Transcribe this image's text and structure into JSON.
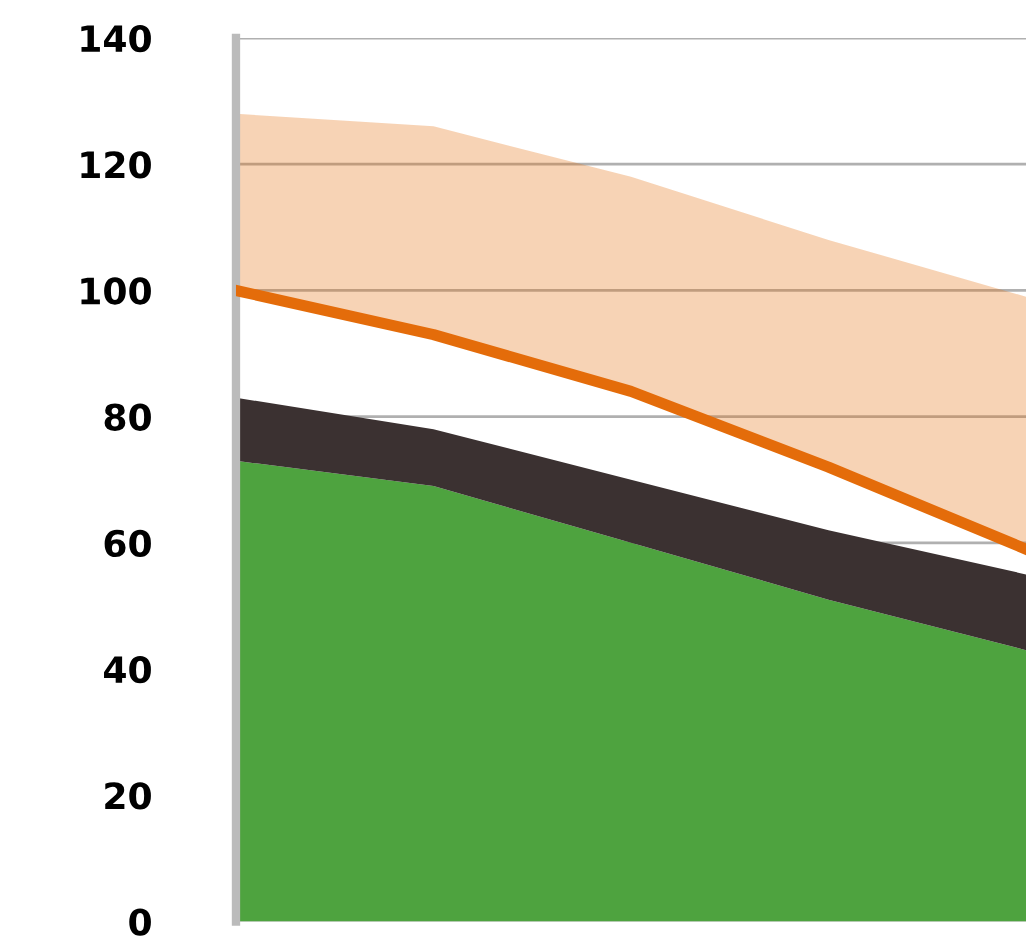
{
  "chart_data": {
    "type": "area",
    "stacked": true,
    "categories": [
      null,
      null,
      null,
      null,
      null
    ],
    "series": [
      {
        "color": "#4ea33f",
        "values": [
          73,
          69,
          60,
          51,
          43
        ]
      },
      {
        "color": "#3b3131",
        "values": [
          10,
          9,
          10,
          11,
          12
        ]
      },
      {
        "type": "line",
        "color": "#e46c0a",
        "values": [
          100,
          93,
          84,
          72,
          59
        ],
        "lower": [
          100,
          93,
          84,
          72,
          59
        ],
        "upper": [
          128,
          126,
          118,
          108,
          99
        ]
      }
    ],
    "ylim": [
      0,
      140
    ],
    "yticks": [
      0,
      20,
      40,
      60,
      80,
      100,
      120,
      140
    ],
    "grid": "y",
    "tick_labels": "y"
  }
}
